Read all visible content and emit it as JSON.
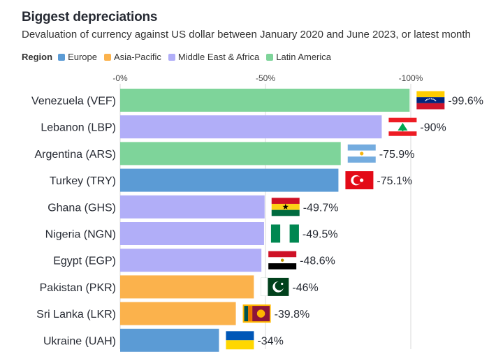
{
  "chart_data": {
    "type": "bar",
    "orientation": "horizontal",
    "title": "Biggest depreciations",
    "subtitle": "Devaluation of currency against US dollar between January 2020 and June 2023, or latest month",
    "legend": {
      "title": "Region",
      "placement": "top-left",
      "entries": [
        {
          "name": "Europe",
          "color": "#5b9bd5"
        },
        {
          "name": "Asia-Pacific",
          "color": "#fbb24c"
        },
        {
          "name": "Middle East & Africa",
          "color": "#b1aef8"
        },
        {
          "name": "Latin America",
          "color": "#7ed49a"
        }
      ]
    },
    "x_axis": {
      "range": [
        0,
        -100
      ],
      "ticks": [
        0,
        -50,
        -100
      ],
      "tick_labels": [
        "-0%",
        "-50%",
        "-100%"
      ],
      "position": "top",
      "grid": true
    },
    "categories": [
      "Venezuela (VEF)",
      "Lebanon (LBP)",
      "Argentina (ARS)",
      "Turkey (TRY)",
      "Ghana (GHS)",
      "Nigeria (NGN)",
      "Egypt (EGP)",
      "Pakistan (PKR)",
      "Sri Lanka (LKR)",
      "Ukraine (UAH)"
    ],
    "values": [
      -99.6,
      -90,
      -75.9,
      -75.1,
      -49.7,
      -49.5,
      -48.6,
      -46,
      -39.8,
      -34
    ],
    "value_labels": [
      "-99.6%",
      "-90%",
      "-75.9%",
      "-75.1%",
      "-49.7%",
      "-49.5%",
      "-48.6%",
      "-46%",
      "-39.8%",
      "-34%"
    ],
    "regions": [
      "Latin America",
      "Middle East & Africa",
      "Latin America",
      "Europe",
      "Middle East & Africa",
      "Middle East & Africa",
      "Middle East & Africa",
      "Asia-Pacific",
      "Asia-Pacific",
      "Europe"
    ],
    "flags": [
      "venezuela-flag-icon",
      "lebanon-flag-icon",
      "argentina-flag-icon",
      "turkey-flag-icon",
      "ghana-flag-icon",
      "nigeria-flag-icon",
      "egypt-flag-icon",
      "pakistan-flag-icon",
      "sri-lanka-flag-icon",
      "ukraine-flag-icon"
    ]
  }
}
